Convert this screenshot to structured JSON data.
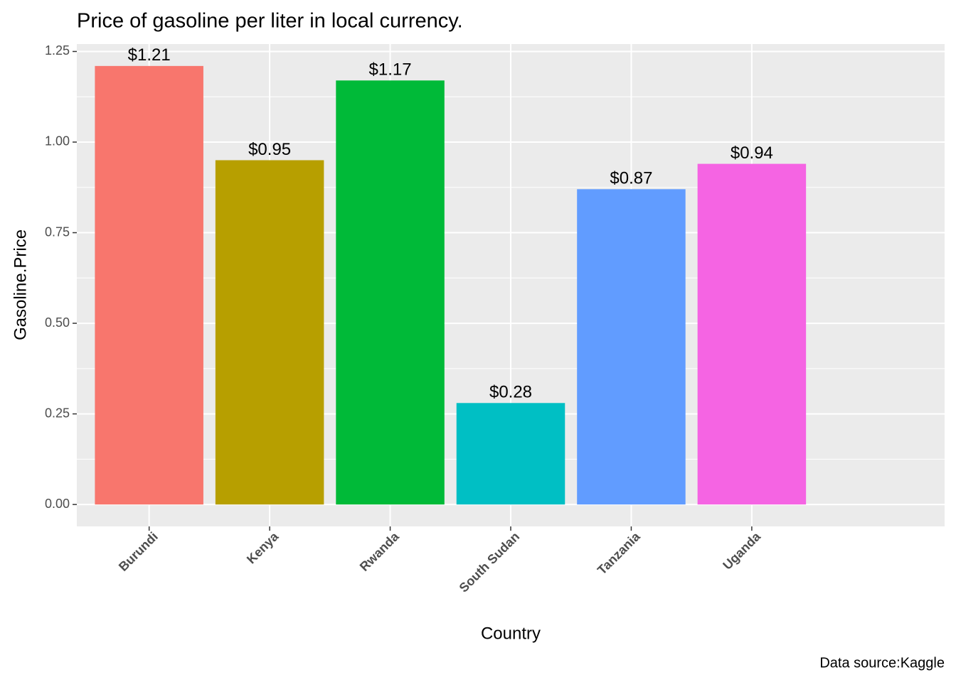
{
  "chart_data": {
    "type": "bar",
    "title": "Price of gasoline per liter in local currency.",
    "x_label": "Country",
    "y_label": "Gasoline.Price",
    "caption": "Data source:Kaggle",
    "categories": [
      "Burundi",
      "Kenya",
      "Rwanda",
      "South Sudan",
      "Tanzania",
      "Uganda"
    ],
    "values": [
      1.21,
      0.95,
      1.17,
      0.28,
      0.87,
      0.94
    ],
    "value_labels": [
      "$1.21",
      "$0.95",
      "$1.17",
      "$0.28",
      "$0.87",
      "$0.94"
    ],
    "colors": [
      "#F8766D",
      "#B79F00",
      "#00BA38",
      "#00BFC4",
      "#619CFF",
      "#F564E3"
    ],
    "ylim": [
      -0.0605,
      1.2705
    ],
    "yticks": [
      {
        "value": 0,
        "label": "0.00"
      },
      {
        "value": 0.25,
        "label": "0.25"
      },
      {
        "value": 0.5,
        "label": "0.50"
      },
      {
        "value": 0.75,
        "label": "0.75"
      },
      {
        "value": 1,
        "label": "1.00"
      },
      {
        "value": 1.25,
        "label": "1.25"
      }
    ],
    "grid": true
  }
}
